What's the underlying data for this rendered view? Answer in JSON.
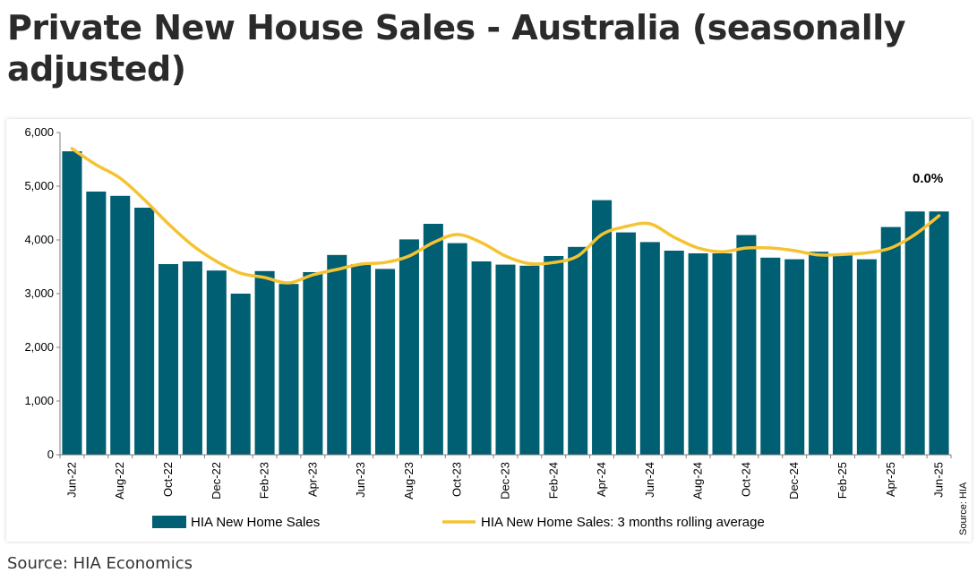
{
  "page": {
    "title": "Private New House Sales - Australia (seasonally adjusted)",
    "source_caption": "Source: HIA Economics"
  },
  "colors": {
    "bar": "#005f73",
    "line": "#f5c332",
    "axis": "#7f7f7f"
  },
  "chart_data": {
    "type": "bar",
    "title": "",
    "xlabel": "",
    "ylabel": "",
    "ylim": [
      0,
      6000
    ],
    "y_ticks": [
      "0",
      "1,000",
      "2,000",
      "3,000",
      "4,000",
      "5,000",
      "6,000"
    ],
    "y_tick_values": [
      0,
      1000,
      2000,
      3000,
      4000,
      5000,
      6000
    ],
    "grid": false,
    "legend_position": "bottom",
    "annotation": "0.0%",
    "source_note": "Source: HIA",
    "categories": [
      "Jun-22",
      "Jul-22",
      "Aug-22",
      "Sep-22",
      "Oct-22",
      "Nov-22",
      "Dec-22",
      "Jan-23",
      "Feb-23",
      "Mar-23",
      "Apr-23",
      "May-23",
      "Jun-23",
      "Jul-23",
      "Aug-23",
      "Sep-23",
      "Oct-23",
      "Nov-23",
      "Dec-23",
      "Jan-24",
      "Feb-24",
      "Mar-24",
      "Apr-24",
      "May-24",
      "Jun-24",
      "Jul-24",
      "Aug-24",
      "Sep-24",
      "Oct-24",
      "Nov-24",
      "Dec-24",
      "Jan-25",
      "Feb-25",
      "Mar-25",
      "Apr-25",
      "May-25",
      "Jun-25"
    ],
    "x_tick_labels": [
      "Jun-22",
      "",
      "Aug-22",
      "",
      "Oct-22",
      "",
      "Dec-22",
      "",
      "Feb-23",
      "",
      "Apr-23",
      "",
      "Jun-23",
      "",
      "Aug-23",
      "",
      "Oct-23",
      "",
      "Dec-23",
      "",
      "Feb-24",
      "",
      "Apr-24",
      "",
      "Jun-24",
      "",
      "Aug-24",
      "",
      "Oct-24",
      "",
      "Dec-24",
      "",
      "Feb-25",
      "",
      "Apr-25",
      "",
      "Jun-25"
    ],
    "series": [
      {
        "name": "HIA New Home Sales",
        "type": "bar",
        "values": [
          5650,
          4900,
          4820,
          4600,
          3550,
          3600,
          3430,
          3000,
          3420,
          3180,
          3400,
          3720,
          3550,
          3460,
          4010,
          4300,
          3940,
          3600,
          3540,
          3520,
          3700,
          3870,
          4740,
          4140,
          3960,
          3800,
          3750,
          3750,
          4090,
          3670,
          3640,
          3780,
          3750,
          3640,
          4240,
          4530,
          4530
        ]
      },
      {
        "name": "HIA New Home Sales: 3 months rolling average",
        "type": "line",
        "values": [
          5700,
          5400,
          5150,
          4750,
          4300,
          3900,
          3600,
          3380,
          3300,
          3200,
          3350,
          3450,
          3550,
          3580,
          3700,
          3950,
          4100,
          3950,
          3700,
          3560,
          3580,
          3700,
          4100,
          4250,
          4300,
          4050,
          3850,
          3780,
          3850,
          3850,
          3800,
          3720,
          3730,
          3760,
          3850,
          4100,
          4450
        ]
      }
    ]
  }
}
